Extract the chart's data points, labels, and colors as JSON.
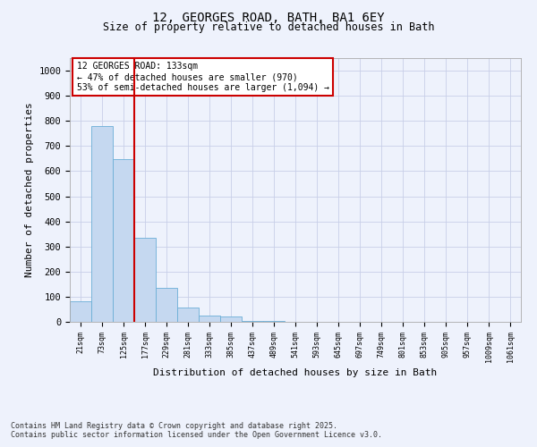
{
  "title1": "12, GEORGES ROAD, BATH, BA1 6EY",
  "title2": "Size of property relative to detached houses in Bath",
  "xlabel": "Distribution of detached houses by size in Bath",
  "ylabel": "Number of detached properties",
  "bin_labels": [
    "21sqm",
    "73sqm",
    "125sqm",
    "177sqm",
    "229sqm",
    "281sqm",
    "333sqm",
    "385sqm",
    "437sqm",
    "489sqm",
    "541sqm",
    "593sqm",
    "645sqm",
    "697sqm",
    "749sqm",
    "801sqm",
    "853sqm",
    "905sqm",
    "957sqm",
    "1009sqm",
    "1061sqm"
  ],
  "bar_heights": [
    82,
    780,
    648,
    335,
    135,
    58,
    25,
    20,
    5,
    2,
    0,
    0,
    0,
    0,
    0,
    0,
    0,
    0,
    0,
    0,
    0
  ],
  "bar_color": "#c5d8f0",
  "bar_edge_color": "#6baed6",
  "background_color": "#eef2fc",
  "grid_color": "#c8cfe8",
  "annotation_text": "12 GEORGES ROAD: 133sqm\n← 47% of detached houses are smaller (970)\n53% of semi-detached houses are larger (1,094) →",
  "annotation_box_color": "#ffffff",
  "annotation_box_edge": "#cc0000",
  "red_line_color": "#cc0000",
  "red_line_x": 2.5,
  "ylim": [
    0,
    1050
  ],
  "yticks": [
    0,
    100,
    200,
    300,
    400,
    500,
    600,
    700,
    800,
    900,
    1000
  ],
  "footer1": "Contains HM Land Registry data © Crown copyright and database right 2025.",
  "footer2": "Contains public sector information licensed under the Open Government Licence v3.0."
}
